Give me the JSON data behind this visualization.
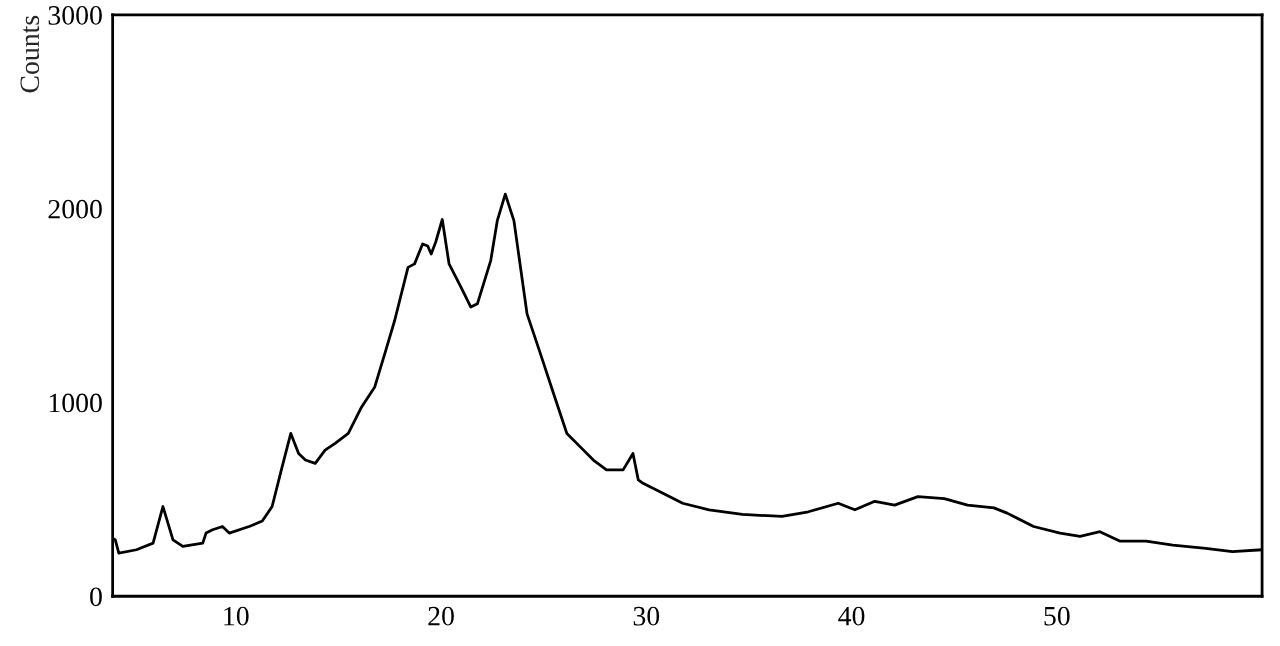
{
  "chart_data": {
    "type": "line",
    "ylabel": "Counts",
    "xlim": [
      4,
      60
    ],
    "ylim": [
      0,
      3000
    ],
    "xticks": [
      10,
      20,
      30,
      40,
      50
    ],
    "yticks": [
      0,
      1000,
      2000,
      3000
    ],
    "grid": false,
    "legend": false,
    "marker": "none",
    "line_style": "solid",
    "series": [
      {
        "color": "#000000",
        "x": [
          4.0,
          4.13,
          4.3,
          5.16,
          5.97,
          6.45,
          6.94,
          7.42,
          8.39,
          8.55,
          8.87,
          9.35,
          9.68,
          10.65,
          11.29,
          11.77,
          12.26,
          12.68,
          13.06,
          13.39,
          13.87,
          14.35,
          14.84,
          15.48,
          16.13,
          16.77,
          17.26,
          17.74,
          18.39,
          18.71,
          19.1,
          19.35,
          19.52,
          19.74,
          20.06,
          20.39,
          20.97,
          21.45,
          21.77,
          22.42,
          22.74,
          23.13,
          23.55,
          24.19,
          24.84,
          25.48,
          26.13,
          26.77,
          27.42,
          28.06,
          28.87,
          29.35,
          29.61,
          29.84,
          30.81,
          31.77,
          33.06,
          34.68,
          36.61,
          37.9,
          39.35,
          40.16,
          41.13,
          42.1,
          43.23,
          44.52,
          45.65,
          46.94,
          47.58,
          48.87,
          50.16,
          51.13,
          52.1,
          53.06,
          54.35,
          55.65,
          57.26,
          58.55,
          60.0
        ],
        "values": [
          300,
          291,
          223,
          240,
          274,
          463,
          291,
          257,
          274,
          326,
          343,
          360,
          326,
          360,
          388,
          463,
          669,
          840,
          737,
          703,
          686,
          754,
          789,
          840,
          977,
          1080,
          1252,
          1423,
          1697,
          1715,
          1818,
          1807,
          1766,
          1828,
          1944,
          1715,
          1595,
          1492,
          1509,
          1732,
          1938,
          2075,
          1938,
          1457,
          1252,
          1046,
          840,
          772,
          703,
          652,
          652,
          737,
          600,
          583,
          532,
          480,
          446,
          422,
          412,
          436,
          480,
          446,
          490,
          470,
          514,
          504,
          470,
          456,
          429,
          360,
          326,
          309,
          333,
          285,
          285,
          264,
          247,
          230,
          240
        ]
      }
    ]
  }
}
